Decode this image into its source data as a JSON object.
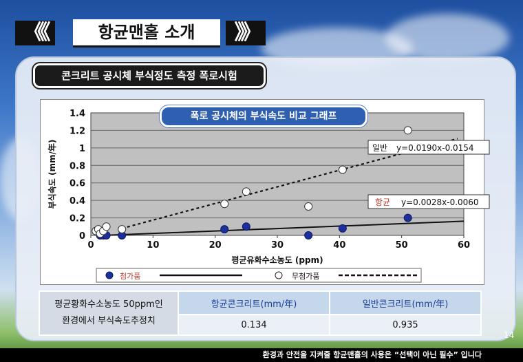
{
  "slide": {
    "title": "항균맨홀 소개",
    "left_arrows": "《《",
    "right_arrows": "》》",
    "subtitle": "콘크리트 공시체 부식정도 측정 폭로시험",
    "page_number": "14",
    "footer": "환경과 안전을 지켜줄 항균맨홀의 사용은 “선택이 아닌 필수” 입니다"
  },
  "chart_data": {
    "type": "scatter",
    "title": "폭로 공시체의 부식속도 비교 그래프",
    "xlabel": "평균유화수소농도 (ppm)",
    "ylabel": "부식속도 (mm/年)",
    "xlim": [
      0,
      60
    ],
    "ylim": [
      0,
      1.4
    ],
    "xticks": [
      "0",
      "10",
      "20",
      "30",
      "40",
      "50",
      "60"
    ],
    "yticks": [
      "0",
      "0.2",
      "0.4",
      "0.6",
      "0.8",
      "1",
      "1.2",
      "1.4"
    ],
    "grid": true,
    "series": [
      {
        "name": "첨가품",
        "marker": "filled",
        "color": "#1c2f9a",
        "points": [
          [
            1.5,
            0
          ],
          [
            2,
            0
          ],
          [
            2.5,
            0
          ],
          [
            5,
            0
          ],
          [
            21.5,
            0.07
          ],
          [
            25,
            0.1
          ],
          [
            35,
            0
          ],
          [
            40.5,
            0.08
          ],
          [
            51,
            0.2
          ]
        ],
        "trend": {
          "slope": 0.0028,
          "intercept": -0.006,
          "label_prefix": "항균",
          "label_eq": "y=0.0028x-0.0060",
          "x_from": 1,
          "x_to": 60
        }
      },
      {
        "name": "무첨가품",
        "marker": "open",
        "color": "#ffffff",
        "points": [
          [
            0.8,
            0.05
          ],
          [
            1.2,
            0.07
          ],
          [
            1.5,
            0.02
          ],
          [
            2,
            0.05
          ],
          [
            2.5,
            0.1
          ],
          [
            5,
            0.07
          ],
          [
            21.5,
            0.36
          ],
          [
            25,
            0.5
          ],
          [
            35,
            0.33
          ],
          [
            40.5,
            0.75
          ],
          [
            51,
            1.2
          ]
        ],
        "trend": {
          "slope": 0.019,
          "intercept": -0.0154,
          "label_prefix": "일반",
          "label_eq": "y=0.0190x-0.0154",
          "x_from": 5,
          "x_to": 59
        }
      }
    ]
  },
  "table": {
    "row_header_line1": "평균황화수소농도 50ppm인",
    "row_header_line2": "환경에서 부식속도추정치",
    "col1": "항균콘크리트(mm/年)",
    "col2": "일반콘크리트(mm/年)",
    "val1": "0.134",
    "val2": "0.935"
  },
  "colors": {
    "antibacterial_label": "#c0392b",
    "graph_title_bg": "#2f5fb0"
  }
}
